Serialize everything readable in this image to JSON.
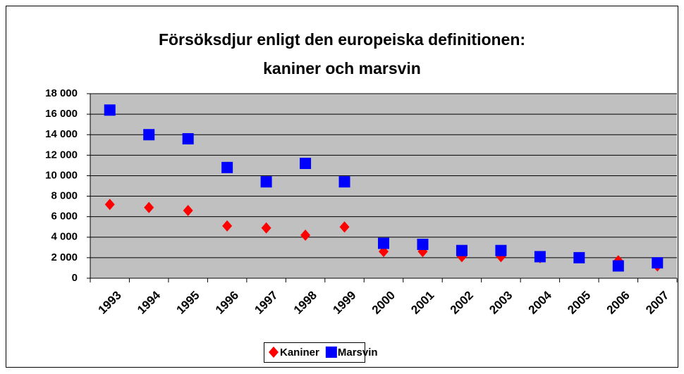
{
  "chart_data": {
    "type": "scatter",
    "title": [
      "Försöksdjur enligt den europeiska definitionen:",
      "kaniner och marsvin"
    ],
    "categories": [
      "1993",
      "1994",
      "1995",
      "1996",
      "1997",
      "1998",
      "1999",
      "2000",
      "2001",
      "2002",
      "2003",
      "2004",
      "2005",
      "2006",
      "2007"
    ],
    "series": [
      {
        "name": "Kaniner",
        "color": "#ff0000",
        "marker": "diamond",
        "values": [
          7200,
          6900,
          6600,
          5100,
          4900,
          4200,
          5000,
          2600,
          2600,
          2100,
          2100,
          2000,
          2000,
          1700,
          1200
        ]
      },
      {
        "name": "Marsvin",
        "color": "#0000ff",
        "marker": "square",
        "values": [
          16400,
          14000,
          13600,
          10800,
          9400,
          11200,
          9400,
          3400,
          3300,
          2700,
          2700,
          2100,
          2000,
          1200,
          1500
        ]
      }
    ],
    "ylim": [
      0,
      18000
    ],
    "yticks": [
      0,
      {
        "value": 2000,
        "label": "2 000"
      },
      {
        "value": 4000,
        "label": "4 000"
      },
      {
        "value": 6000,
        "label": "6 000"
      },
      {
        "value": 8000,
        "label": "8 000"
      },
      {
        "value": 10000,
        "label": "10 000"
      },
      {
        "value": 12000,
        "label": "12 000"
      },
      {
        "value": 14000,
        "label": "14 000"
      },
      {
        "value": 16000,
        "label": "16 000"
      },
      {
        "value": 18000,
        "label": "18 000"
      }
    ],
    "grid": true,
    "legend": "bottom"
  }
}
